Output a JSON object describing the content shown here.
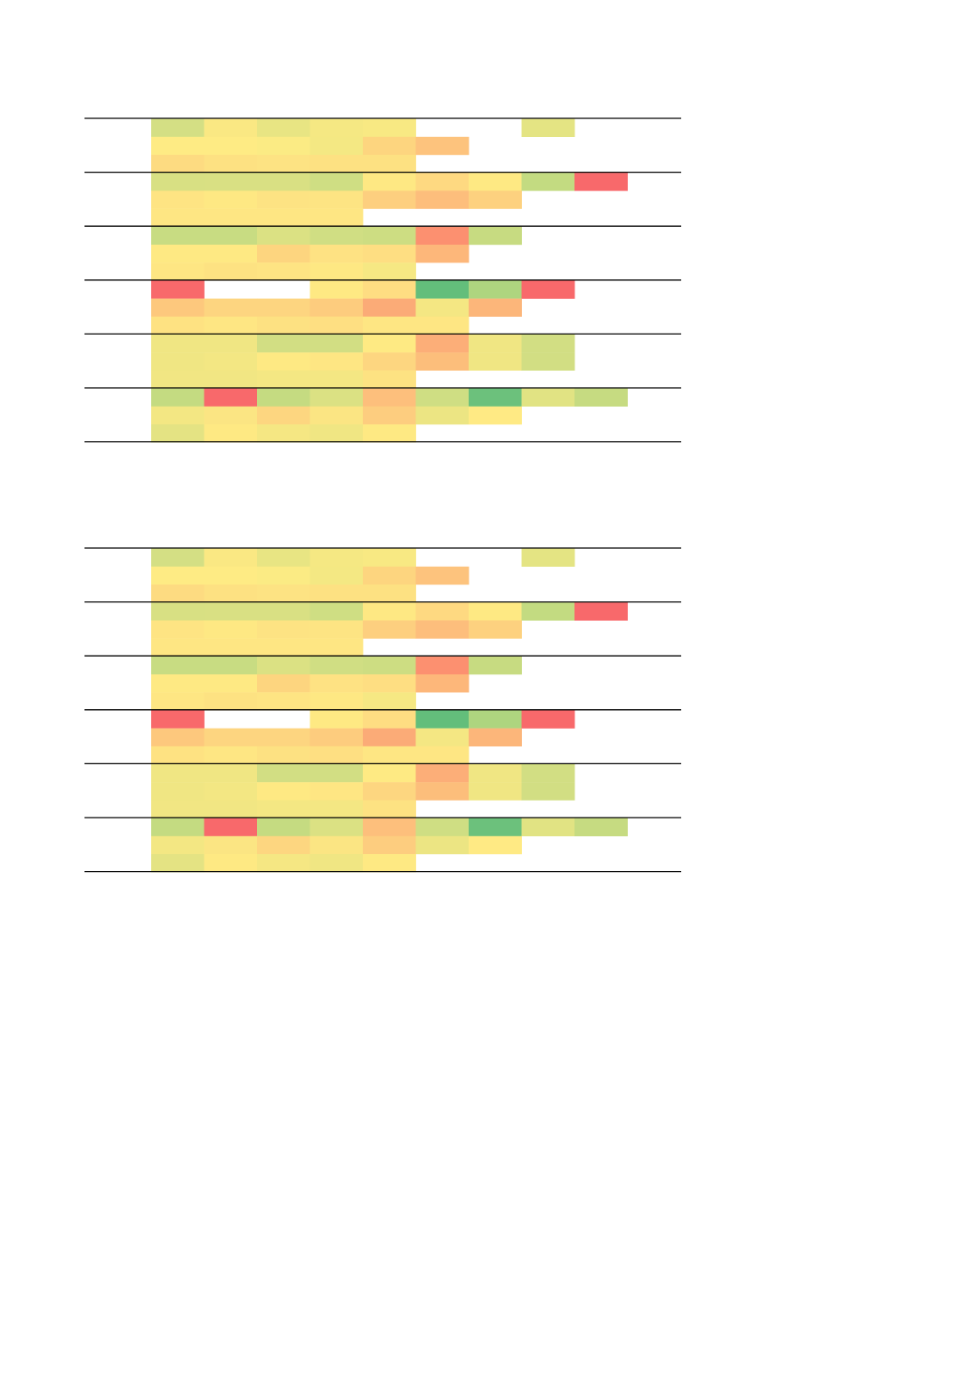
{
  "chart_data": [
    {
      "type": "heatmap",
      "title": "",
      "color_scale": {
        "low": "#F8696B",
        "mid": "#FFEB84",
        "high": "#63BE7B"
      },
      "groups": [
        {
          "rows": [
            [
              "#D4DF84",
              "#FAE883",
              "#E8E583",
              "#F5E883",
              "#F8E983",
              null,
              null,
              "#E4E483",
              null
            ],
            [
              "#FEEB84",
              "#FEEB84",
              "#FBEB84",
              "#F4E883",
              "#FDD57F",
              "#FDC37D",
              null,
              null,
              null
            ],
            [
              "#FDDB81",
              "#FDE182",
              "#FDE383",
              "#FDE182",
              "#FDE182",
              null,
              null,
              null,
              null
            ]
          ]
        },
        {
          "rows": [
            [
              "#D8E083",
              "#D9E083",
              "#D9E083",
              "#CFDE83",
              "#FEE883",
              "#FED981",
              "#FEE983",
              "#C3DB81",
              "#F8696B"
            ],
            [
              "#FEE483",
              "#FEE883",
              "#FDE383",
              "#FDE483",
              "#FDCF7F",
              "#FDBE7C",
              "#FDD17F",
              null,
              null
            ],
            [
              "#FEE683",
              "#FEE683",
              "#FEE683",
              "#FEE683",
              null,
              null,
              null,
              null,
              null
            ]
          ]
        },
        {
          "rows": [
            [
              "#C8DC82",
              "#C8DC82",
              "#DBE183",
              "#D0DE83",
              "#CDDD82",
              "#FC9070",
              "#C7DB81",
              null,
              null
            ],
            [
              "#FEE983",
              "#FEE983",
              "#FDD57F",
              "#FEE283",
              "#FEDE82",
              "#FDB77A",
              null,
              null,
              null
            ],
            [
              "#FEE683",
              "#FDE282",
              "#FEE483",
              "#FEE883",
              "#F6E883",
              null,
              null,
              null,
              null
            ]
          ]
        },
        {
          "rows": [
            [
              "#F8696B",
              null,
              null,
              "#FEE983",
              "#FEDD82",
              "#63BE7B",
              "#AED57F",
              "#F8696B",
              null
            ],
            [
              "#FDC87D",
              "#FDD580",
              "#FDD580",
              "#FDCC7E",
              "#FBAB77",
              "#F4E783",
              "#FCB67A",
              null,
              null
            ],
            [
              "#FEE282",
              "#FEE683",
              "#FDE182",
              "#FEDF82",
              "#FEE683",
              "#FEE683",
              null,
              null,
              null
            ]
          ]
        },
        {
          "rows": [
            [
              "#F0E683",
              "#F0E683",
              "#D2DE83",
              "#D2DE83",
              "#FEEA83",
              "#FCAE78",
              "#F0E683",
              "#D2DE83",
              null
            ],
            [
              "#F0E683",
              "#F3E783",
              "#FEE983",
              "#FEE683",
              "#FDD680",
              "#FCBE7B",
              "#F0E683",
              "#D2DE83",
              null
            ],
            [
              "#F1E683",
              "#F1E683",
              "#F4E783",
              "#F4E783",
              "#FDE282",
              null,
              null,
              null,
              null
            ]
          ]
        },
        {
          "rows": [
            [
              "#C4DB81",
              "#F8696B",
              "#C5DB81",
              "#DBE183",
              "#FDBF7C",
              "#CFDE83",
              "#6CC17C",
              "#E1E383",
              "#C6DB81"
            ],
            [
              "#F3E783",
              "#FBE583",
              "#FDD680",
              "#FBE583",
              "#FDCD7F",
              "#ECE583",
              "#FFEA84",
              null,
              null
            ],
            [
              "#E4E383",
              "#FEE983",
              "#F5E783",
              "#F0E683",
              "#FEE983",
              null,
              null,
              null,
              null
            ]
          ]
        }
      ]
    },
    {
      "type": "heatmap",
      "title": "",
      "color_scale": {
        "low": "#F8696B",
        "mid": "#FFEB84",
        "high": "#63BE7B"
      },
      "groups": [
        {
          "rows": [
            [
              "#D4DF84",
              "#FAE883",
              "#E8E583",
              "#F5E883",
              "#F8E983",
              null,
              null,
              "#E4E483",
              null
            ],
            [
              "#FEEB84",
              "#FEEB84",
              "#FBEB84",
              "#F4E883",
              "#FDD57F",
              "#FDC37D",
              null,
              null,
              null
            ],
            [
              "#FDDB81",
              "#FDE182",
              "#FDE383",
              "#FDE182",
              "#FDE182",
              null,
              null,
              null,
              null
            ]
          ]
        },
        {
          "rows": [
            [
              "#D8E083",
              "#D9E083",
              "#D9E083",
              "#CFDE83",
              "#FEE883",
              "#FED981",
              "#FEE983",
              "#C3DB81",
              "#F8696B"
            ],
            [
              "#FEE483",
              "#FEE883",
              "#FDE383",
              "#FDE483",
              "#FDCF7F",
              "#FDBE7C",
              "#FDD17F",
              null,
              null
            ],
            [
              "#FEE683",
              "#FEE683",
              "#FEE683",
              "#FEE683",
              null,
              null,
              null,
              null,
              null
            ]
          ]
        },
        {
          "rows": [
            [
              "#C8DC82",
              "#C8DC82",
              "#DBE183",
              "#D0DE83",
              "#CDDD82",
              "#FC9070",
              "#C7DB81",
              null,
              null
            ],
            [
              "#FEE983",
              "#FEE983",
              "#FDD57F",
              "#FEE283",
              "#FEDE82",
              "#FDB77A",
              null,
              null,
              null
            ],
            [
              "#FEE683",
              "#FDE282",
              "#FEE483",
              "#FEE883",
              "#F6E883",
              null,
              null,
              null,
              null
            ]
          ]
        },
        {
          "rows": [
            [
              "#F8696B",
              null,
              null,
              "#FEE983",
              "#FEDD82",
              "#63BE7B",
              "#AED57F",
              "#F8696B",
              null
            ],
            [
              "#FDC87D",
              "#FDD580",
              "#FDD580",
              "#FDCC7E",
              "#FBAB77",
              "#F4E783",
              "#FCB67A",
              null,
              null
            ],
            [
              "#FEE282",
              "#FEE683",
              "#FDE182",
              "#FEDF82",
              "#FEE683",
              "#FEE683",
              null,
              null,
              null
            ]
          ]
        },
        {
          "rows": [
            [
              "#F0E683",
              "#F0E683",
              "#D2DE83",
              "#D2DE83",
              "#FEEA83",
              "#FCAE78",
              "#F0E683",
              "#D2DE83",
              null
            ],
            [
              "#F0E683",
              "#F3E783",
              "#FEE983",
              "#FEE683",
              "#FDD680",
              "#FCBE7B",
              "#F0E683",
              "#D2DE83",
              null
            ],
            [
              "#F1E683",
              "#F1E683",
              "#F4E783",
              "#F4E783",
              "#FDE282",
              null,
              null,
              null,
              null
            ]
          ]
        },
        {
          "rows": [
            [
              "#C4DB81",
              "#F8696B",
              "#C5DB81",
              "#DBE183",
              "#FDBF7C",
              "#CFDE83",
              "#6CC17C",
              "#E1E383",
              "#C6DB81"
            ],
            [
              "#F3E783",
              "#FBE583",
              "#FDD680",
              "#FBE583",
              "#FDCD7F",
              "#ECE583",
              "#FFEA84",
              null,
              null
            ],
            [
              "#E4E383",
              "#FEE983",
              "#F5E783",
              "#F0E683",
              "#FEE983",
              null,
              null,
              null,
              null
            ]
          ]
        }
      ]
    }
  ]
}
